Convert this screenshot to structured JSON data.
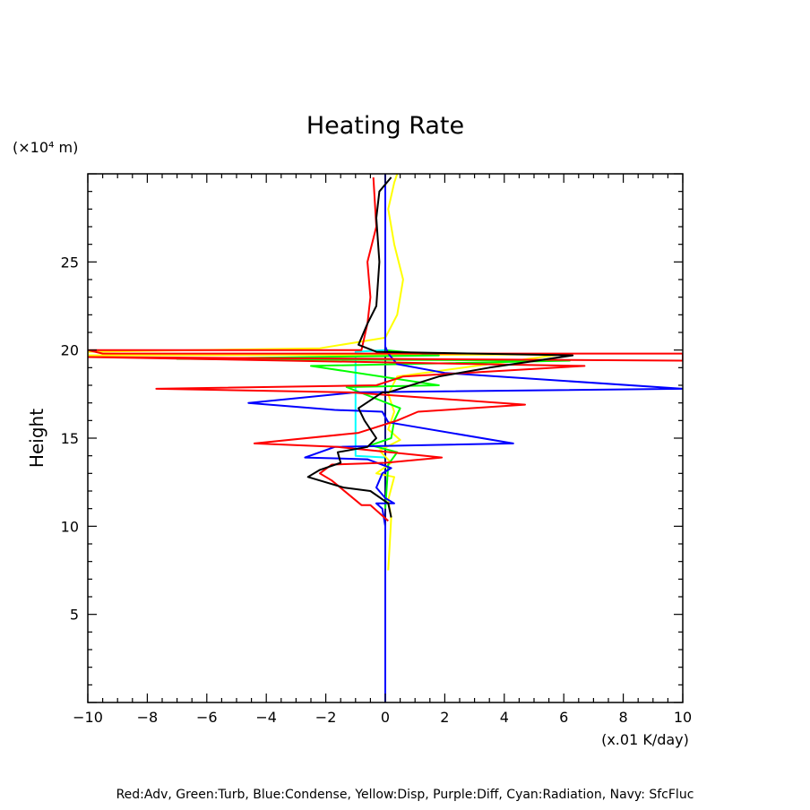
{
  "chart_data": {
    "type": "line",
    "title": "Heating Rate",
    "ylabel": "Height",
    "yunit": "(×10⁴ m)",
    "xunit": "(x.01 K/day)",
    "legend_text": "Red:Adv, Green:Turb, Blue:Condense, Yellow:Disp, Purple:Diff, Cyan:Radiation, Navy: SfcFluc",
    "xlim": [
      -10,
      10
    ],
    "ylim": [
      0,
      30
    ],
    "x_ticks": [
      -10,
      -8,
      -6,
      -4,
      -2,
      0,
      2,
      4,
      6,
      8,
      10
    ],
    "x_tick_labels": [
      "−10",
      "−8",
      "−6",
      "−4",
      "−2",
      "0",
      "2",
      "4",
      "6",
      "8",
      "10"
    ],
    "y_ticks": [
      5,
      10,
      15,
      20,
      25
    ],
    "y_tick_labels": [
      "5",
      "10",
      "15",
      "20",
      "25"
    ],
    "grid": false,
    "series": [
      {
        "color": "#00ffff",
        "points": [
          [
            0,
            0
          ],
          [
            0,
            13.9
          ],
          [
            -1,
            14.0
          ],
          [
            -1,
            19.9
          ],
          [
            0,
            20.0
          ],
          [
            0,
            30
          ]
        ]
      },
      {
        "color": "#000080",
        "points": [
          [
            0,
            0
          ],
          [
            0,
            30
          ]
        ]
      },
      {
        "color": "#ffff00",
        "points": [
          [
            0.1,
            7.5
          ],
          [
            0.15,
            9.0
          ],
          [
            0.2,
            10.5
          ],
          [
            0.1,
            11.5
          ],
          [
            0.3,
            12.8
          ],
          [
            -0.3,
            13.0
          ],
          [
            0.2,
            13.6
          ],
          [
            -0.2,
            14.3
          ],
          [
            0.5,
            14.9
          ],
          [
            0.1,
            15.5
          ],
          [
            0.3,
            16.5
          ],
          [
            0.1,
            17.5
          ],
          [
            0.4,
            18.5
          ],
          [
            5.9,
            19.75
          ],
          [
            -10,
            19.7
          ],
          [
            -10,
            19.9
          ],
          [
            -2.2,
            20.1
          ],
          [
            0,
            20.7
          ],
          [
            0.4,
            22.0
          ],
          [
            0.6,
            24.0
          ],
          [
            0.3,
            26.0
          ],
          [
            0.1,
            28.0
          ],
          [
            0.3,
            29.5
          ],
          [
            0.4,
            30
          ]
        ]
      },
      {
        "color": "#00ff00",
        "points": [
          [
            0,
            11.0
          ],
          [
            0.1,
            13.5
          ],
          [
            0.4,
            14.2
          ],
          [
            -0.5,
            14.6
          ],
          [
            0.2,
            15.0
          ],
          [
            0.3,
            16.0
          ],
          [
            0.5,
            16.7
          ],
          [
            -1.3,
            17.9
          ],
          [
            1.8,
            18.0
          ],
          [
            -2.5,
            19.1
          ],
          [
            6.2,
            19.4
          ],
          [
            -7.0,
            19.5
          ],
          [
            1.8,
            19.7
          ],
          [
            0,
            20.0
          ]
        ]
      },
      {
        "color": "#0000ff",
        "points": [
          [
            0,
            0
          ],
          [
            0,
            10.0
          ],
          [
            -0.1,
            11.0
          ],
          [
            -0.3,
            11.3
          ],
          [
            0.3,
            11.3
          ],
          [
            0,
            11.6
          ],
          [
            -0.3,
            12.2
          ],
          [
            -0.1,
            13.0
          ],
          [
            0.2,
            13.3
          ],
          [
            -0.6,
            13.8
          ],
          [
            -2.7,
            13.9
          ],
          [
            -1.7,
            14.5
          ],
          [
            4.3,
            14.7
          ],
          [
            0.1,
            15.9
          ],
          [
            -0.1,
            16.5
          ],
          [
            -1.7,
            16.6
          ],
          [
            -4.6,
            17.0
          ],
          [
            -1.0,
            17.6
          ],
          [
            10,
            17.8
          ],
          [
            2.0,
            18.7
          ],
          [
            0.4,
            19.2
          ],
          [
            0.1,
            19.8
          ],
          [
            0,
            20.2
          ],
          [
            0,
            30
          ]
        ]
      },
      {
        "color": "#ff0000",
        "points": [
          [
            0.1,
            10.3
          ],
          [
            -0.5,
            11.2
          ],
          [
            -0.8,
            11.2
          ],
          [
            -1.8,
            12.6
          ],
          [
            -2.2,
            13.0
          ],
          [
            -1.8,
            13.5
          ],
          [
            0,
            13.6
          ],
          [
            1.9,
            13.9
          ],
          [
            -1.6,
            14.5
          ],
          [
            -4.4,
            14.7
          ],
          [
            -0.9,
            15.3
          ],
          [
            0.4,
            16.0
          ],
          [
            1.1,
            16.5
          ],
          [
            4.7,
            16.9
          ],
          [
            -1.2,
            17.6
          ],
          [
            -7.7,
            17.8
          ],
          [
            -0.3,
            18.0
          ],
          [
            0.6,
            18.5
          ],
          [
            6.7,
            19.1
          ],
          [
            -10,
            19.6
          ],
          [
            10,
            19.4
          ],
          [
            10,
            19.8
          ],
          [
            -9.5,
            19.8
          ],
          [
            -10,
            20.0
          ],
          [
            -0.8,
            20.0
          ],
          [
            -0.6,
            21.5
          ],
          [
            -0.5,
            23.0
          ],
          [
            -0.6,
            25.0
          ],
          [
            -0.3,
            27.0
          ],
          [
            -0.4,
            29.8
          ]
        ]
      },
      {
        "color": "#000000",
        "points": [
          [
            0.2,
            10.5
          ],
          [
            0.1,
            11.3
          ],
          [
            -0.5,
            12.0
          ],
          [
            -1.4,
            12.2
          ],
          [
            -2.6,
            12.8
          ],
          [
            -2.2,
            13.2
          ],
          [
            -1.5,
            13.6
          ],
          [
            -1.6,
            14.2
          ],
          [
            -0.6,
            14.5
          ],
          [
            -0.3,
            15.0
          ],
          [
            -0.7,
            16.0
          ],
          [
            -0.9,
            16.7
          ],
          [
            -0.1,
            17.6
          ],
          [
            0.1,
            17.6
          ],
          [
            1.8,
            18.5
          ],
          [
            3.5,
            19.0
          ],
          [
            6.3,
            19.7
          ],
          [
            -0.3,
            19.9
          ],
          [
            -0.9,
            20.3
          ],
          [
            -0.6,
            21.5
          ],
          [
            -0.3,
            22.5
          ],
          [
            -0.2,
            25.0
          ],
          [
            -0.3,
            27.5
          ],
          [
            -0.2,
            29.0
          ],
          [
            0.2,
            29.8
          ]
        ]
      }
    ]
  }
}
